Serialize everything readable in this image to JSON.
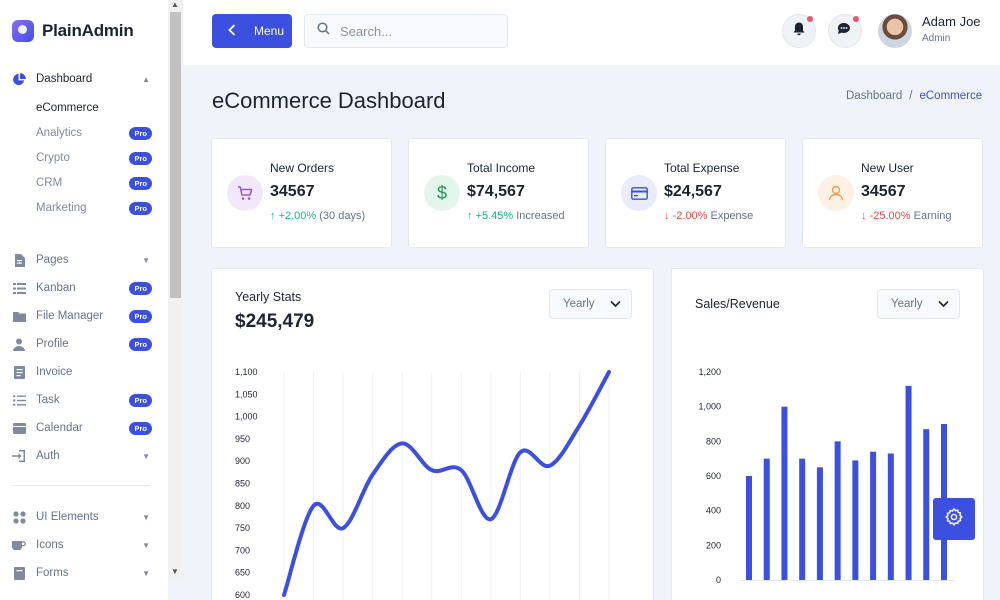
{
  "app": {
    "name": "PlainAdmin"
  },
  "sidebar": {
    "dashboard": {
      "label": "Dashboard"
    },
    "sub_items": [
      {
        "label": "eCommerce",
        "active": true,
        "pro": false
      },
      {
        "label": "Analytics",
        "active": false,
        "pro": true
      },
      {
        "label": "Crypto",
        "active": false,
        "pro": true
      },
      {
        "label": "CRM",
        "active": false,
        "pro": true
      },
      {
        "label": "Marketing",
        "active": false,
        "pro": true
      }
    ],
    "items": [
      {
        "label": "Pages",
        "icon": "pages-icon",
        "badge": "",
        "dropdown": true
      },
      {
        "label": "Kanban",
        "icon": "kanban-icon",
        "badge": "Pro",
        "dropdown": false
      },
      {
        "label": "File Manager",
        "icon": "folder-icon",
        "badge": "Pro",
        "dropdown": false
      },
      {
        "label": "Profile",
        "icon": "user-icon",
        "badge": "Pro",
        "dropdown": false
      },
      {
        "label": "Invoice",
        "icon": "invoice-icon",
        "badge": "",
        "dropdown": false
      },
      {
        "label": "Task",
        "icon": "task-icon",
        "badge": "Pro",
        "dropdown": false
      },
      {
        "label": "Calendar",
        "icon": "calendar-icon",
        "badge": "Pro",
        "dropdown": false
      },
      {
        "label": "Auth",
        "icon": "auth-icon",
        "badge": "",
        "dropdown": true
      }
    ],
    "items2": [
      {
        "label": "UI Elements",
        "icon": "grid-icon",
        "dropdown": true
      },
      {
        "label": "Icons",
        "icon": "cup-icon",
        "dropdown": true
      },
      {
        "label": "Forms",
        "icon": "form-icon",
        "dropdown": true
      }
    ],
    "pro_label": "Pro"
  },
  "topbar": {
    "menu_label": "Menu",
    "search_placeholder": "Search...",
    "user": {
      "name": "Adam Joe",
      "role": "Admin"
    }
  },
  "page": {
    "title": "eCommerce Dashboard",
    "breadcrumb": {
      "root": "Dashboard",
      "sep": "/",
      "current": "eCommerce"
    }
  },
  "stats": [
    {
      "label": "New Orders",
      "value": "34567",
      "change": "+2.00%",
      "suffix": "(30 days)",
      "direction": "up",
      "icon": "cart-icon",
      "icon_bg": "#f3e8fb",
      "icon_color": "#9b51e0"
    },
    {
      "label": "Total Income",
      "value": "$74,567",
      "change": "+5.45%",
      "suffix": "Increased",
      "direction": "up",
      "icon": "dollar-icon",
      "icon_bg": "#e3f6ec",
      "icon_color": "#219653"
    },
    {
      "label": "Total Expense",
      "value": "$24,567",
      "change": "-2.00%",
      "suffix": "Expense",
      "direction": "down",
      "icon": "credit-card-icon",
      "icon_bg": "#e8ecfd",
      "icon_color": "#3c50e0"
    },
    {
      "label": "New User",
      "value": "34567",
      "change": "-25.00%",
      "suffix": "Earning",
      "direction": "down",
      "icon": "user-icon",
      "icon_bg": "#fdf0e5",
      "icon_color": "#f2994a"
    }
  ],
  "yearly": {
    "title": "Yearly Stats",
    "value": "$245,479",
    "select": "Yearly"
  },
  "sales": {
    "title": "Sales/Revenue",
    "select": "Yearly"
  },
  "colors": {
    "accent": "#3c50e0",
    "up": "#10b981",
    "down": "#ef4444"
  },
  "chart_data": [
    {
      "type": "line",
      "title": "Yearly Stats",
      "ylim": [
        600,
        1100
      ],
      "yticks": [
        "1,100",
        "1,050",
        "1,000",
        "950",
        "900",
        "850",
        "800",
        "750",
        "700",
        "650",
        "600"
      ],
      "series": [
        {
          "values": [
            600,
            800,
            750,
            870,
            940,
            880,
            880,
            770,
            920,
            890,
            980,
            1100
          ]
        }
      ]
    },
    {
      "type": "bar",
      "title": "Sales/Revenue",
      "ylim": [
        0,
        1200
      ],
      "yticks": [
        "1,200",
        "1,000",
        "800",
        "600",
        "400",
        "200",
        "0"
      ],
      "series": [
        {
          "values": [
            600,
            700,
            1000,
            700,
            650,
            800,
            690,
            740,
            730,
            1120,
            870,
            900
          ]
        }
      ]
    }
  ]
}
